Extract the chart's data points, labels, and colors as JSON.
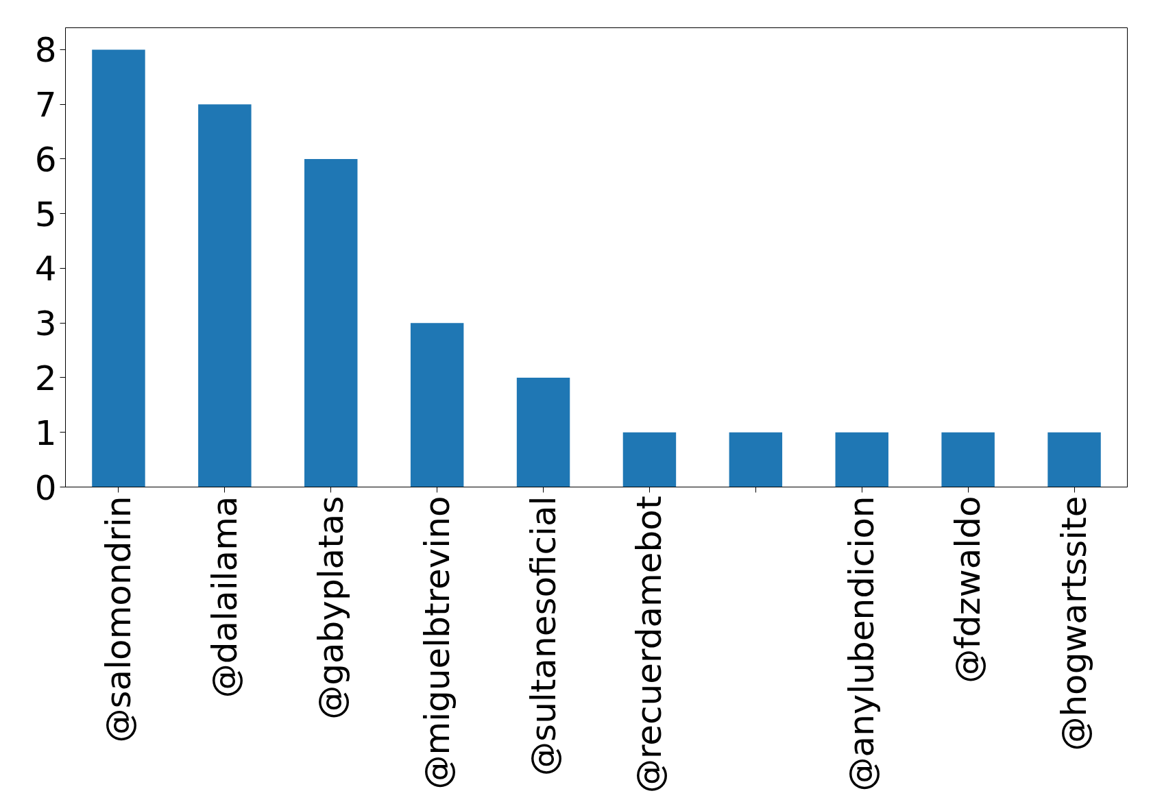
{
  "chart_data": {
    "type": "bar",
    "categories": [
      "@salomondrin",
      "@dalailama",
      "@gabyplatas",
      "@miguelbtrevino",
      "@sultanesoficial",
      "@recuerdamebot",
      null,
      "@anylubendicion",
      "@fdzwaldo",
      "@hogwartssite"
    ],
    "values": [
      8,
      7,
      6,
      3,
      2,
      1,
      1,
      1,
      1,
      1
    ],
    "color": "#1f77b4",
    "ylim": [
      0,
      8.4
    ],
    "yticks": [
      0,
      1,
      2,
      3,
      4,
      5,
      6,
      7,
      8
    ],
    "grid": false
  }
}
